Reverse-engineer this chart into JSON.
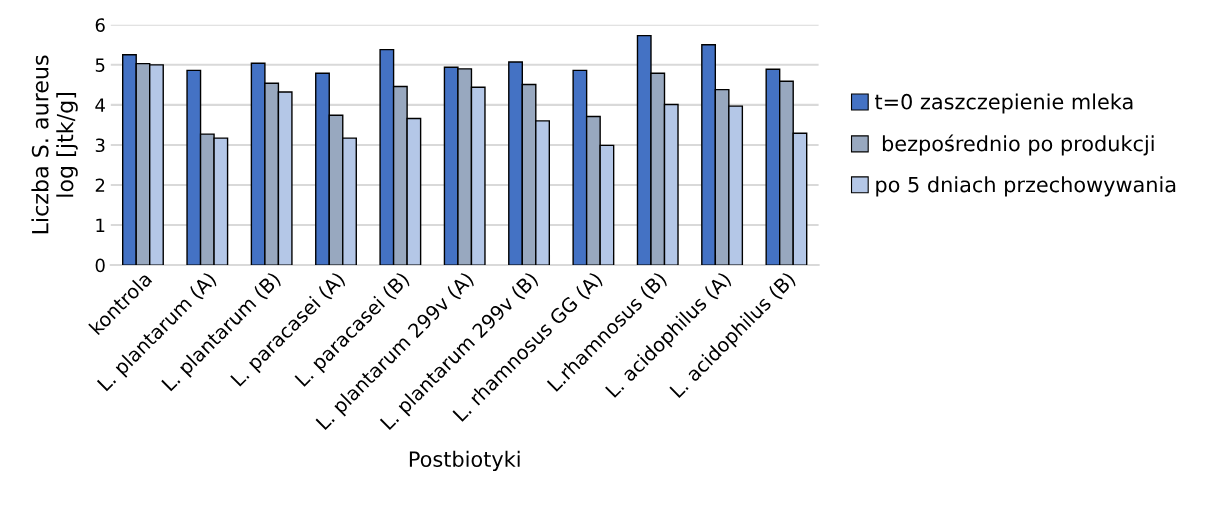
{
  "chart_data": {
    "type": "bar",
    "xlabel": "Postbiotyki",
    "ylabel": "Liczba S. aureus\nlog [jtk/g]",
    "categories": [
      "kontrola",
      "L. plantarum (A)",
      "L. plantarum (B)",
      "L. paracasei (A)",
      "L. paracasei (B)",
      "L. plantarum 299v (A)",
      "L. plantarum 299v (B)",
      "L. rhamnosus GG (A)",
      "L.rhamnosus (B)",
      "L. acidophilus (A)",
      "L. acidophilus (B)"
    ],
    "series": [
      {
        "name": "t=0 zaszczepienie mleka",
        "color": "#4472c4",
        "values": [
          5.25,
          4.86,
          5.04,
          4.79,
          5.38,
          4.94,
          5.07,
          4.86,
          5.73,
          5.5,
          4.89
        ]
      },
      {
        "name": " bezpośrednio po produkcji",
        "color": "#98a8bf",
        "values": [
          5.03,
          3.27,
          4.54,
          3.74,
          4.46,
          4.9,
          4.51,
          3.71,
          4.79,
          4.38,
          4.59
        ]
      },
      {
        "name": "po 5 dniach przechowywania",
        "color": "#b4c7e7",
        "values": [
          5.0,
          3.17,
          4.32,
          3.17,
          3.66,
          4.44,
          3.6,
          2.99,
          4.01,
          3.97,
          3.29
        ]
      }
    ],
    "ylim": [
      0,
      6
    ],
    "yticks": [
      0,
      1,
      2,
      3,
      4,
      5,
      6
    ],
    "grid": "y",
    "legend": "right"
  }
}
